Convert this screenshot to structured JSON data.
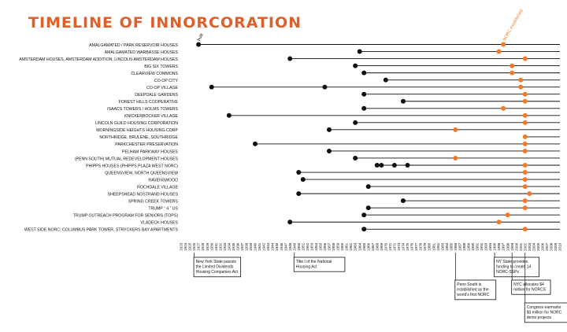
{
  "chart_data": {
    "type": "timeline",
    "title": "TIMELINE OF INNORCORATION",
    "colors": {
      "title": "#e0602a",
      "accent": "#f07a2a",
      "ink": "#111111"
    },
    "axis": {
      "min": 1923,
      "max": 2010,
      "step": 1
    },
    "rows": [
      {
        "name": "AMALGAMATED / PARK RESERVOIR HOUSES",
        "built": [
          1927
        ],
        "norc": [
          1997
        ]
      },
      {
        "name": "AMALGAMATED WARBASSE HOUSES",
        "built": [
          1964
        ],
        "norc": [
          1996
        ]
      },
      {
        "name": "AMSTERDAM HOUSES, AMSTERDAM ADDITION, LINCOLN-AMSTERDAM HOUSES",
        "built": [
          1948
        ],
        "norc": [
          2002
        ]
      },
      {
        "name": "BIG SIX TOWERS",
        "built": [
          1963
        ],
        "norc": [
          1999
        ]
      },
      {
        "name": "CLEARVIEW COMMONS",
        "built": [
          1965
        ],
        "norc": [
          1999
        ]
      },
      {
        "name": "CO-OP CITY",
        "built": [
          1970
        ],
        "norc": [
          2001
        ]
      },
      {
        "name": "CO-OP VILLAGE",
        "built": [
          1930,
          1956
        ],
        "norc": [
          2001
        ]
      },
      {
        "name": "DEEPDALE GARDENS",
        "built": [
          1965
        ],
        "norc": [
          2002
        ]
      },
      {
        "name": "FOREST HILLS COOPERATIVE",
        "built": [
          1974
        ],
        "norc": [
          2002
        ]
      },
      {
        "name": "ISAACS TOWERS / HOLMS TOWERS",
        "built": [
          1965
        ],
        "norc": [
          1997
        ]
      },
      {
        "name": "KNICKERBOCKER VILLAGE",
        "built": [
          1934
        ],
        "norc": [
          2002
        ]
      },
      {
        "name": "LINCOLN GUILD HOUSING CORPORATION",
        "built": [
          1963
        ],
        "norc": [
          2002
        ]
      },
      {
        "name": "MORNINGSIDE HEIGHTS HOUSING CORP",
        "built": [
          1957
        ],
        "norc": [
          1986
        ]
      },
      {
        "name": "NORTHRIDGE, BRULENE, SOUTHRIDGE",
        "built": [],
        "norc": [
          2002
        ]
      },
      {
        "name": "PARKCHESTER PRESERVATION",
        "built": [
          1940
        ],
        "norc": [
          2002
        ]
      },
      {
        "name": "PELHAM PARKWAY HOUSES",
        "built": [
          1957
        ],
        "norc": [
          2002
        ]
      },
      {
        "name": "(PENN SOUTH) MUTUAL REDEVELOPMENT HOUSES",
        "built": [
          1963
        ],
        "norc": [
          1986
        ]
      },
      {
        "name": "PHIPPS HOUSES (PHIPPS PLAZA WEST NORC)",
        "built": [
          1968,
          1969,
          1972,
          1975
        ],
        "norc": [
          2002
        ]
      },
      {
        "name": "QUEENSVIEW, NORTH QUEENSVIEW",
        "built": [
          1950
        ],
        "norc": [
          2002
        ]
      },
      {
        "name": "RAVENSWOOD",
        "built": [
          1951
        ],
        "norc": [
          2002
        ]
      },
      {
        "name": "ROCHDALE VILLAGE",
        "built": [
          1966
        ],
        "norc": [
          2002
        ]
      },
      {
        "name": "SHEEPSHEAD NOSTRAND HOUSES",
        "built": [
          1950
        ],
        "norc": [
          2003
        ]
      },
      {
        "name": "SPRING CREEK TOWERS",
        "built": [
          1974
        ],
        "norc": [
          2002
        ]
      },
      {
        "name": "TRUMP “ 4 ” US",
        "built": [
          1966
        ],
        "norc": [
          2002
        ]
      },
      {
        "name": "TRUMP OUTREACH PROGRAM FOR SENIORS (TOPS)",
        "built": [
          1965
        ],
        "norc": [
          1998
        ]
      },
      {
        "name": "VLADECK HOUSES",
        "built": [
          1948
        ],
        "norc": [
          1996
        ]
      },
      {
        "name": "WEST SIDE NORC; COLUMBUS PARK TOWER, STRYCKERS BAY APARTMENTS",
        "built": [
          1965
        ],
        "norc": [
          2002
        ]
      }
    ],
    "labels": {
      "built": "built",
      "norc": "NORC established"
    },
    "events": [
      {
        "year": 1926,
        "lines": [
          "New York State passes",
          "the Limited Dividends",
          "Housing Companies Act"
        ]
      },
      {
        "year": 1949,
        "lines": [
          "Title I of the National",
          "Housing Act"
        ]
      },
      {
        "year": 1986,
        "lines": [
          "Penn South is",
          "established as the",
          "world's first NORC"
        ]
      },
      {
        "year": 1995,
        "lines": [
          "NY State provides",
          "funding to create 14",
          "NORC-SSPs"
        ]
      },
      {
        "year": 1999,
        "lines": [
          "NYC allocates $4",
          "million for NORCS"
        ]
      },
      {
        "year": 2002,
        "lines": [
          "Congress earmarks",
          "$3 million for NORC",
          "demo projects"
        ]
      }
    ]
  }
}
